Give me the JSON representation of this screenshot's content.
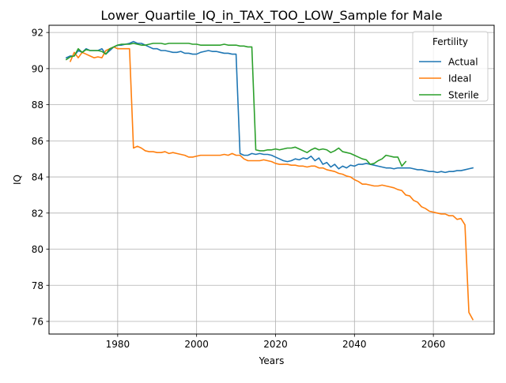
{
  "chart_data": {
    "type": "line",
    "title": "Lower_Quartile_IQ_in_TAX_TOO_LOW_Sample for Male",
    "xlabel": "Years",
    "ylabel": "IQ",
    "xlim": [
      1962.6,
      2075.4
    ],
    "ylim": [
      75.3,
      92.4
    ],
    "x_ticks": [
      1980,
      2000,
      2020,
      2040,
      2060
    ],
    "y_ticks": [
      76,
      78,
      80,
      82,
      84,
      86,
      88,
      90,
      92
    ],
    "grid": true,
    "legend": {
      "title": "Fertility",
      "position": "top-right"
    },
    "colors": {
      "Actual": "#1f77b4",
      "Ideal": "#ff7f0e",
      "Sterile": "#2ca02c"
    },
    "series": [
      {
        "name": "Actual",
        "x": [
          1967,
          1968,
          1969,
          1970,
          1971,
          1972,
          1973,
          1974,
          1975,
          1976,
          1977,
          1978,
          1979,
          1980,
          1981,
          1982,
          1983,
          1984,
          1985,
          1986,
          1987,
          1988,
          1989,
          1990,
          1991,
          1992,
          1993,
          1994,
          1995,
          1996,
          1997,
          1998,
          1999,
          2000,
          2001,
          2002,
          2003,
          2004,
          2005,
          2006,
          2007,
          2008,
          2009,
          2010,
          2011,
          2012,
          2013,
          2014,
          2015,
          2016,
          2017,
          2018,
          2019,
          2020,
          2021,
          2022,
          2023,
          2024,
          2025,
          2026,
          2027,
          2028,
          2029,
          2030,
          2031,
          2032,
          2033,
          2034,
          2035,
          2036,
          2037,
          2038,
          2039,
          2040,
          2041,
          2042,
          2043,
          2044,
          2045,
          2046,
          2047,
          2048,
          2049,
          2050,
          2051,
          2052,
          2053,
          2054,
          2055,
          2056,
          2057,
          2058,
          2059,
          2060,
          2061,
          2062,
          2063,
          2064,
          2065,
          2066,
          2067,
          2068,
          2069,
          2070
        ],
        "y": [
          90.6,
          90.7,
          90.7,
          91.0,
          90.9,
          91.1,
          91.0,
          91.0,
          91.0,
          91.1,
          90.8,
          91.0,
          91.2,
          91.3,
          91.3,
          91.35,
          91.4,
          91.5,
          91.4,
          91.4,
          91.3,
          91.2,
          91.1,
          91.1,
          91.0,
          91.0,
          90.95,
          90.9,
          90.9,
          90.95,
          90.85,
          90.85,
          90.8,
          90.8,
          90.9,
          90.95,
          91.0,
          90.95,
          90.95,
          90.9,
          90.85,
          90.85,
          90.8,
          90.8,
          85.3,
          85.2,
          85.2,
          85.3,
          85.25,
          85.3,
          85.25,
          85.25,
          85.2,
          85.1,
          85.0,
          84.9,
          84.85,
          84.9,
          85.0,
          84.95,
          85.05,
          85.0,
          85.15,
          84.9,
          85.05,
          84.7,
          84.8,
          84.55,
          84.7,
          84.45,
          84.6,
          84.5,
          84.65,
          84.6,
          84.7,
          84.7,
          84.75,
          84.7,
          84.65,
          84.6,
          84.55,
          84.5,
          84.5,
          84.45,
          84.5,
          84.5,
          84.5,
          84.5,
          84.45,
          84.4,
          84.4,
          84.35,
          84.3,
          84.3,
          84.25,
          84.3,
          84.25,
          84.3,
          84.3,
          84.35,
          84.35,
          84.4,
          84.45,
          84.5
        ]
      },
      {
        "name": "Ideal",
        "x": [
          1968,
          1969,
          1970,
          1971,
          1972,
          1973,
          1974,
          1975,
          1976,
          1977,
          1978,
          1979,
          1980,
          1981,
          1982,
          1983,
          1984,
          1985,
          1986,
          1987,
          1988,
          1989,
          1990,
          1991,
          1992,
          1993,
          1994,
          1995,
          1996,
          1997,
          1998,
          1999,
          2000,
          2001,
          2002,
          2003,
          2004,
          2005,
          2006,
          2007,
          2008,
          2009,
          2010,
          2011,
          2012,
          2013,
          2014,
          2015,
          2016,
          2017,
          2018,
          2019,
          2020,
          2021,
          2022,
          2023,
          2024,
          2025,
          2026,
          2027,
          2028,
          2029,
          2030,
          2031,
          2032,
          2033,
          2034,
          2035,
          2036,
          2037,
          2038,
          2039,
          2040,
          2041,
          2042,
          2043,
          2044,
          2045,
          2046,
          2047,
          2048,
          2049,
          2050,
          2051,
          2052,
          2053,
          2054,
          2055,
          2056,
          2057,
          2058,
          2059,
          2060,
          2061,
          2062,
          2063,
          2064,
          2065,
          2066,
          2067,
          2068,
          2069,
          2070
        ],
        "y": [
          90.4,
          90.9,
          90.6,
          90.9,
          90.8,
          90.7,
          90.6,
          90.65,
          90.6,
          91.0,
          91.1,
          91.2,
          91.1,
          91.1,
          91.1,
          91.1,
          85.6,
          85.7,
          85.6,
          85.45,
          85.4,
          85.4,
          85.35,
          85.35,
          85.4,
          85.3,
          85.35,
          85.3,
          85.25,
          85.2,
          85.1,
          85.1,
          85.15,
          85.2,
          85.2,
          85.2,
          85.2,
          85.2,
          85.2,
          85.25,
          85.2,
          85.3,
          85.2,
          85.2,
          85.0,
          84.9,
          84.9,
          84.9,
          84.9,
          84.95,
          84.9,
          84.85,
          84.75,
          84.7,
          84.7,
          84.7,
          84.65,
          84.65,
          84.6,
          84.6,
          84.55,
          84.6,
          84.6,
          84.5,
          84.5,
          84.4,
          84.35,
          84.3,
          84.2,
          84.15,
          84.05,
          84.0,
          83.85,
          83.75,
          83.6,
          83.6,
          83.55,
          83.5,
          83.5,
          83.55,
          83.5,
          83.45,
          83.4,
          83.3,
          83.25,
          83.0,
          82.95,
          82.7,
          82.6,
          82.35,
          82.25,
          82.1,
          82.05,
          82.0,
          81.95,
          81.95,
          81.85,
          81.85,
          81.65,
          81.7,
          81.35,
          76.5,
          76.1
        ]
      },
      {
        "name": "Sterile",
        "x": [
          1967,
          1968,
          1969,
          1970,
          1971,
          1972,
          1973,
          1974,
          1975,
          1976,
          1977,
          1978,
          1979,
          1980,
          1981,
          1982,
          1983,
          1984,
          1985,
          1986,
          1987,
          1988,
          1989,
          1990,
          1991,
          1992,
          1993,
          1994,
          1995,
          1996,
          1997,
          1998,
          1999,
          2000,
          2001,
          2002,
          2003,
          2004,
          2005,
          2006,
          2007,
          2008,
          2009,
          2010,
          2011,
          2012,
          2013,
          2014,
          2015,
          2016,
          2017,
          2018,
          2019,
          2020,
          2021,
          2022,
          2023,
          2024,
          2025,
          2026,
          2027,
          2028,
          2029,
          2030,
          2031,
          2032,
          2033,
          2034,
          2035,
          2036,
          2037,
          2038,
          2039,
          2040,
          2041,
          2042,
          2043,
          2044,
          2045,
          2046,
          2047,
          2048,
          2049,
          2050,
          2051,
          2052,
          2053
        ],
        "y": [
          90.5,
          90.65,
          90.7,
          91.1,
          90.9,
          91.05,
          91.0,
          91.0,
          91.0,
          90.95,
          90.8,
          91.1,
          91.2,
          91.3,
          91.35,
          91.35,
          91.35,
          91.4,
          91.35,
          91.3,
          91.3,
          91.35,
          91.4,
          91.4,
          91.4,
          91.35,
          91.4,
          91.4,
          91.4,
          91.4,
          91.4,
          91.4,
          91.35,
          91.35,
          91.3,
          91.3,
          91.3,
          91.3,
          91.3,
          91.3,
          91.35,
          91.3,
          91.3,
          91.3,
          91.25,
          91.25,
          91.2,
          91.2,
          85.5,
          85.45,
          85.45,
          85.5,
          85.5,
          85.55,
          85.5,
          85.55,
          85.6,
          85.6,
          85.65,
          85.55,
          85.45,
          85.35,
          85.5,
          85.6,
          85.5,
          85.55,
          85.5,
          85.35,
          85.45,
          85.6,
          85.4,
          85.35,
          85.3,
          85.2,
          85.1,
          85.0,
          84.95,
          84.7,
          84.75,
          84.9,
          85.0,
          85.2,
          85.15,
          85.1,
          85.1,
          84.6,
          84.85
        ]
      }
    ]
  }
}
